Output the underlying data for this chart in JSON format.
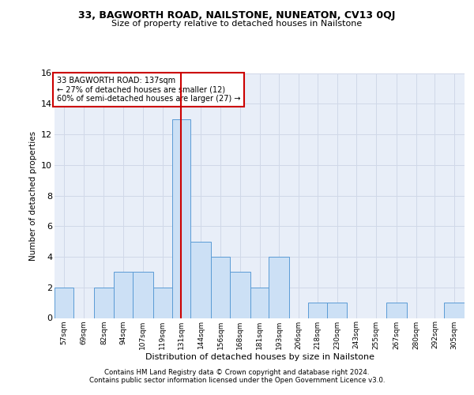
{
  "title1": "33, BAGWORTH ROAD, NAILSTONE, NUNEATON, CV13 0QJ",
  "title2": "Size of property relative to detached houses in Nailstone",
  "xlabel": "Distribution of detached houses by size in Nailstone",
  "ylabel": "Number of detached properties",
  "footer1": "Contains HM Land Registry data © Crown copyright and database right 2024.",
  "footer2": "Contains public sector information licensed under the Open Government Licence v3.0.",
  "annotation_line1": "33 BAGWORTH ROAD: 137sqm",
  "annotation_line2": "← 27% of detached houses are smaller (12)",
  "annotation_line3": "60% of semi-detached houses are larger (27) →",
  "bar_color": "#cce0f5",
  "bar_edge_color": "#5b9bd5",
  "vline_color": "#cc0000",
  "annotation_box_edge": "#cc0000",
  "grid_color": "#d0d8e8",
  "bg_color": "#e8eef8",
  "categories": [
    "57sqm",
    "69sqm",
    "82sqm",
    "94sqm",
    "107sqm",
    "119sqm",
    "131sqm",
    "144sqm",
    "156sqm",
    "168sqm",
    "181sqm",
    "193sqm",
    "206sqm",
    "218sqm",
    "230sqm",
    "243sqm",
    "255sqm",
    "267sqm",
    "280sqm",
    "292sqm",
    "305sqm"
  ],
  "values": [
    2,
    0,
    2,
    3,
    3,
    2,
    13,
    5,
    4,
    3,
    2,
    4,
    0,
    1,
    1,
    0,
    0,
    1,
    0,
    0,
    1
  ],
  "bin_edges": [
    50.5,
    62.5,
    75.5,
    88.5,
    100.5,
    113.5,
    125.5,
    137.5,
    150.5,
    162.5,
    175.5,
    187.5,
    200.5,
    212.5,
    224.5,
    237.5,
    249.5,
    262.5,
    275.5,
    287.5,
    299.5,
    312.5
  ],
  "ylim": [
    0,
    16
  ],
  "yticks": [
    0,
    2,
    4,
    6,
    8,
    10,
    12,
    14,
    16
  ],
  "vline_x": 131.5
}
